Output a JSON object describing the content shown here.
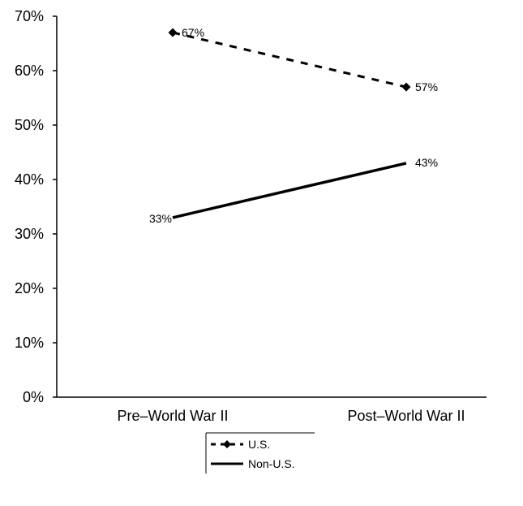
{
  "chart_data": {
    "type": "line",
    "title": "",
    "xlabel": "",
    "ylabel": "",
    "categories": [
      "Pre–World War II",
      "Post–World War II"
    ],
    "ylim": [
      0,
      70
    ],
    "yticks": [
      0,
      10,
      20,
      30,
      40,
      50,
      60,
      70
    ],
    "ytick_labels": [
      "0%",
      "10%",
      "20%",
      "30%",
      "40%",
      "50%",
      "60%",
      "70%"
    ],
    "grid": false,
    "legend_position": "bottom-center",
    "series": [
      {
        "name": "U.S.",
        "values": [
          67,
          57
        ],
        "labels": [
          "67%",
          "57%"
        ],
        "line_style": "dashed",
        "marker": "diamond",
        "color": "#000000"
      },
      {
        "name": "Non-U.S.",
        "values": [
          33,
          43
        ],
        "labels": [
          "33%",
          "43%"
        ],
        "line_style": "solid",
        "marker": "none",
        "color": "#000000"
      }
    ]
  }
}
